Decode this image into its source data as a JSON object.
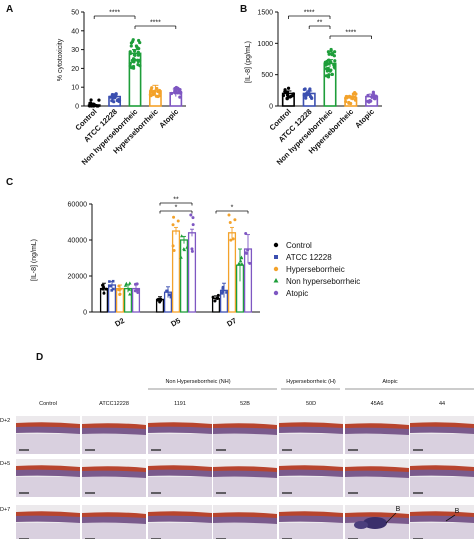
{
  "panels": {
    "a": "A",
    "b": "B",
    "c": "C",
    "d": "D"
  },
  "chart_data": [
    {
      "panel": "A",
      "type": "bar",
      "ylabel": "% cytotoxicity",
      "ylim": [
        0,
        50
      ],
      "yticks": [
        "0",
        "10",
        "20",
        "30",
        "40",
        "50"
      ],
      "categories": [
        "Control",
        "ATCC 12228",
        "Non hyperseborrheic",
        "Hyperseborrheic",
        "Atopic"
      ],
      "values": [
        0.5,
        5,
        28,
        8,
        7
      ],
      "errors": [
        0.3,
        1.5,
        2,
        3,
        2
      ],
      "colors": [
        "#000000",
        "#3b4fb0",
        "#1e9e3a",
        "#f3a22b",
        "#7e57c2"
      ],
      "significance": [
        {
          "from": 0,
          "to": 2,
          "label": "****"
        },
        {
          "from": 2,
          "to": 4,
          "label": "****"
        }
      ]
    },
    {
      "panel": "B",
      "type": "bar",
      "ylabel": "[IL-8] (pg/mL)",
      "ylim": [
        0,
        1500
      ],
      "yticks": [
        "0",
        "500",
        "1000",
        "1500"
      ],
      "categories": [
        "Control",
        "ATCC 12228",
        "Non hyperseborrheic",
        "Hyperseborrheic",
        "Atopic"
      ],
      "values": [
        200,
        200,
        680,
        130,
        150
      ],
      "errors": [
        40,
        40,
        60,
        30,
        40
      ],
      "colors": [
        "#000000",
        "#3b4fb0",
        "#1e9e3a",
        "#f3a22b",
        "#7e57c2"
      ],
      "significance": [
        {
          "from": 0,
          "to": 2,
          "label": "****"
        },
        {
          "from": 1,
          "to": 2,
          "label": "**"
        },
        {
          "from": 2,
          "to": 4,
          "label": "****"
        }
      ]
    },
    {
      "panel": "C",
      "type": "bar",
      "ylabel": "[IL-8] (ng/mL)",
      "ylim": [
        0,
        60000
      ],
      "yticks": [
        "0",
        "20000",
        "40000",
        "60000"
      ],
      "categories": [
        "D2",
        "D5",
        "D7"
      ],
      "series": [
        {
          "name": "Control",
          "values": [
            13000,
            7000,
            7500
          ],
          "errors": [
            3000,
            1500,
            1500
          ]
        },
        {
          "name": "ATCC 12228",
          "values": [
            15000,
            11000,
            12000
          ],
          "errors": [
            2000,
            3000,
            4000
          ]
        },
        {
          "name": "Hyperseborrheic",
          "values": [
            13000,
            45000,
            44000
          ],
          "errors": [
            2000,
            2000,
            3000
          ]
        },
        {
          "name": "Non hyperseborrheic",
          "values": [
            13000,
            40000,
            26000
          ],
          "errors": [
            2000,
            2000,
            9000
          ]
        },
        {
          "name": "Atopic",
          "values": [
            13000,
            44000,
            35000
          ],
          "errors": [
            2000,
            2000,
            8000
          ]
        }
      ],
      "colors": [
        "#000000",
        "#3b4fb0",
        "#f3a22b",
        "#1e9e3a",
        "#7e57c2"
      ],
      "significance": [
        {
          "group": 1,
          "label": "**",
          "level": 2
        },
        {
          "group": 1,
          "label": "*",
          "level": 1
        },
        {
          "group": 2,
          "label": "*",
          "level": 1
        }
      ]
    }
  ],
  "legend_c": [
    "Control",
    "ATCC 12228",
    "Hyperseborrheic",
    "Non hyperseborrheic",
    "Atopic"
  ],
  "histology": {
    "group_labels": [
      "Non Hyperseborrheic (NH)",
      "Hyperseborrheic (H)",
      "Atopic"
    ],
    "columns": [
      "Control",
      "ATCC12228",
      "1191",
      "52B",
      "50D",
      "45A6",
      "44"
    ],
    "rows": [
      "D+2",
      "D+5",
      "D+7"
    ],
    "annotations": [
      "B",
      "B"
    ]
  }
}
